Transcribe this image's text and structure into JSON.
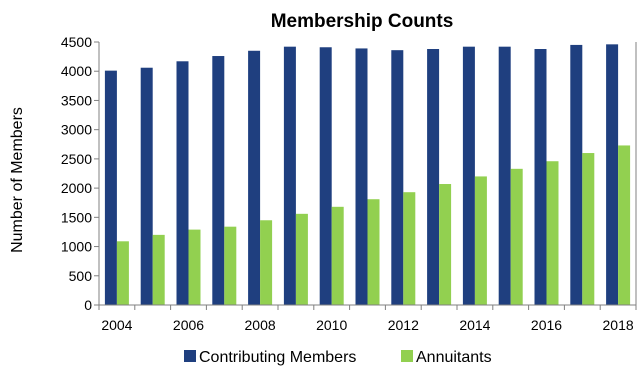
{
  "chart_data": {
    "type": "bar",
    "title": "Membership Counts",
    "xlabel": "",
    "ylabel": "Number of Members",
    "ylim": [
      0,
      4500
    ],
    "yticks": [
      "0",
      "500",
      "1000",
      "1500",
      "2000",
      "2500",
      "3000",
      "3500",
      "4000",
      "4500"
    ],
    "categories": [
      "2004",
      "2005",
      "2006",
      "2007",
      "2008",
      "2009",
      "2010",
      "2011",
      "2012",
      "2013",
      "2014",
      "2015",
      "2016",
      "2017",
      "2018"
    ],
    "xtick_labels": [
      "2004",
      "",
      "2006",
      "",
      "2008",
      "",
      "2010",
      "",
      "2012",
      "",
      "2014",
      "",
      "2016",
      "",
      "2018"
    ],
    "series": [
      {
        "name": "Contributing Members",
        "color": "#1f3f7f",
        "values": [
          4010,
          4060,
          4170,
          4260,
          4350,
          4420,
          4410,
          4390,
          4360,
          4380,
          4420,
          4420,
          4380,
          4450,
          4460
        ]
      },
      {
        "name": "Annuitants",
        "color": "#92d050",
        "values": [
          1090,
          1200,
          1290,
          1340,
          1450,
          1560,
          1680,
          1810,
          1930,
          2070,
          2200,
          2330,
          2460,
          2600,
          2730
        ]
      }
    ],
    "grid": false,
    "legend": "bottom"
  }
}
